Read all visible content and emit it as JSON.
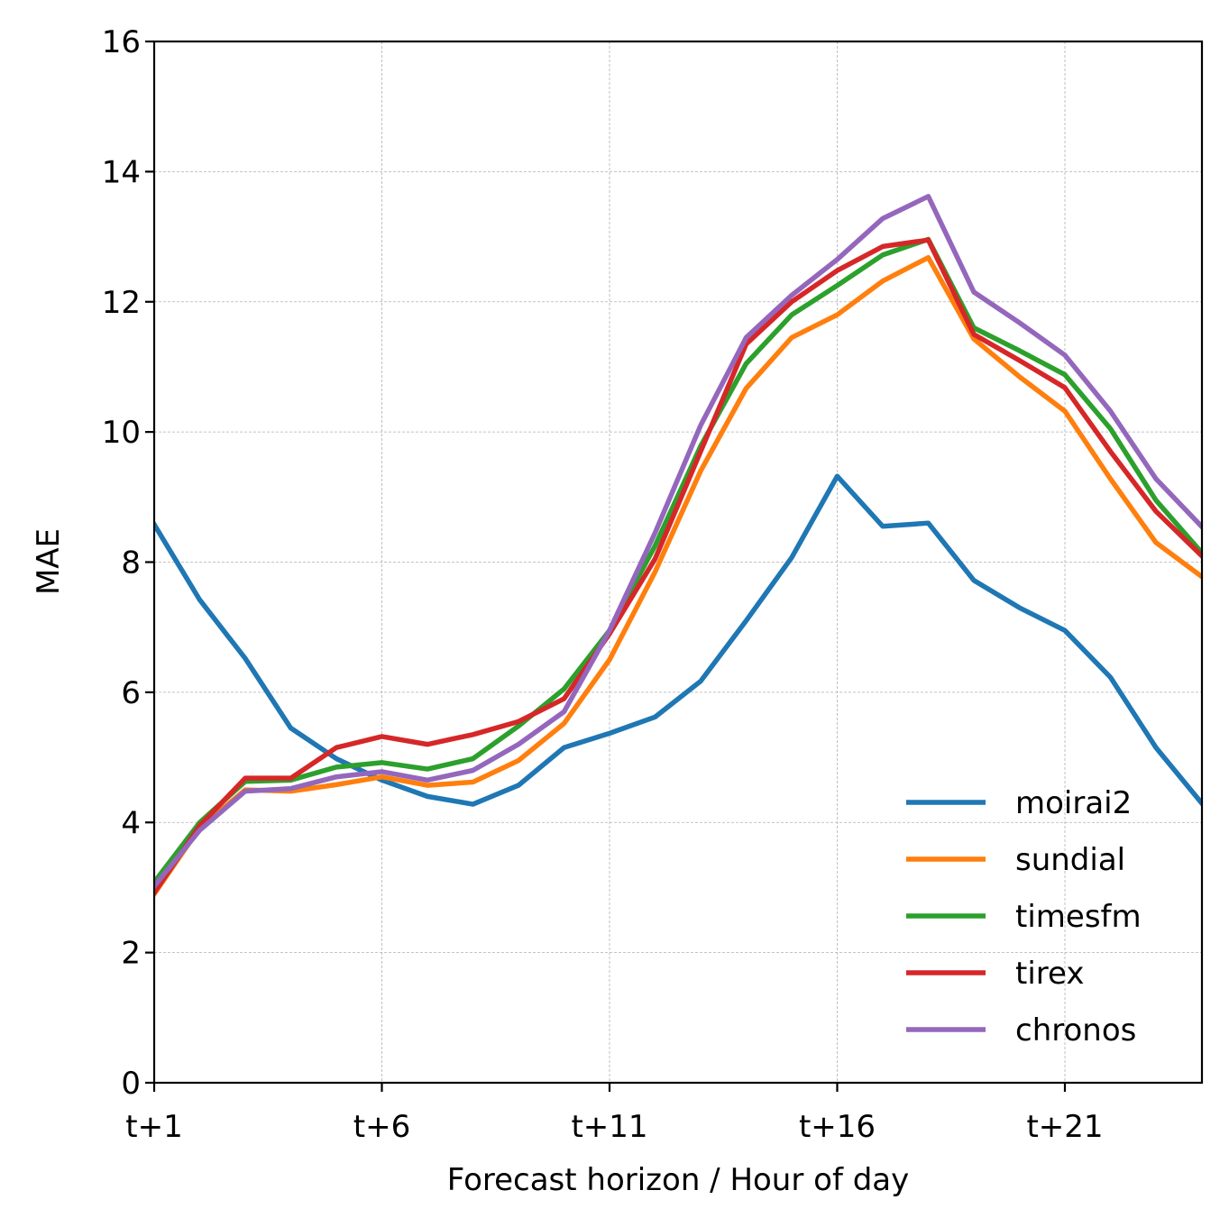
{
  "chart_data": {
    "type": "line",
    "title": "",
    "xlabel": "Forecast horizon / Hour of day",
    "ylabel": "MAE",
    "x": [
      "t+1",
      "t+2",
      "t+3",
      "t+4",
      "t+5",
      "t+6",
      "t+7",
      "t+8",
      "t+9",
      "t+10",
      "t+11",
      "t+12",
      "t+13",
      "t+14",
      "t+15",
      "t+16",
      "t+17",
      "t+18",
      "t+19",
      "t+20",
      "t+21",
      "t+22",
      "t+23",
      "t+24"
    ],
    "xticks": [
      "t+1",
      "t+6",
      "t+11",
      "t+16",
      "t+21"
    ],
    "ylim": [
      0,
      16
    ],
    "yticks": [
      0,
      2,
      4,
      6,
      8,
      10,
      12,
      14,
      16
    ],
    "grid": true,
    "legend": "lower-right",
    "series": [
      {
        "name": "moirai2",
        "color": "#1f77b4",
        "values": [
          8.58,
          7.42,
          6.52,
          5.45,
          4.98,
          4.65,
          4.4,
          4.28,
          4.57,
          5.15,
          5.37,
          5.62,
          6.17,
          7.1,
          8.07,
          9.32,
          8.55,
          8.6,
          7.72,
          7.3,
          6.95,
          6.23,
          5.15,
          4.3
        ]
      },
      {
        "name": "sundial",
        "color": "#ff7f0e",
        "values": [
          2.9,
          3.92,
          4.5,
          4.48,
          4.58,
          4.7,
          4.57,
          4.62,
          4.95,
          5.52,
          6.5,
          7.85,
          9.4,
          10.67,
          11.45,
          11.8,
          12.32,
          12.68,
          11.43,
          10.85,
          10.32,
          9.28,
          8.3,
          7.78
        ]
      },
      {
        "name": "timesfm",
        "color": "#2ca02c",
        "values": [
          3.08,
          4.0,
          4.63,
          4.65,
          4.85,
          4.92,
          4.82,
          4.98,
          5.48,
          6.05,
          6.95,
          8.25,
          9.78,
          11.05,
          11.8,
          12.25,
          12.72,
          12.96,
          11.6,
          11.25,
          10.88,
          10.05,
          8.95,
          8.15
        ]
      },
      {
        "name": "tirex",
        "color": "#d62728",
        "values": [
          2.92,
          3.95,
          4.68,
          4.68,
          5.15,
          5.32,
          5.2,
          5.35,
          5.55,
          5.9,
          6.9,
          8.05,
          9.7,
          11.35,
          12.0,
          12.48,
          12.85,
          12.95,
          11.5,
          11.1,
          10.68,
          9.7,
          8.78,
          8.1
        ]
      },
      {
        "name": "chronos",
        "color": "#9467bd",
        "values": [
          3.02,
          3.88,
          4.48,
          4.52,
          4.7,
          4.78,
          4.65,
          4.8,
          5.2,
          5.7,
          6.95,
          8.45,
          10.1,
          11.45,
          12.1,
          12.65,
          13.28,
          13.62,
          12.15,
          11.68,
          11.18,
          10.32,
          9.28,
          8.55
        ]
      }
    ]
  }
}
